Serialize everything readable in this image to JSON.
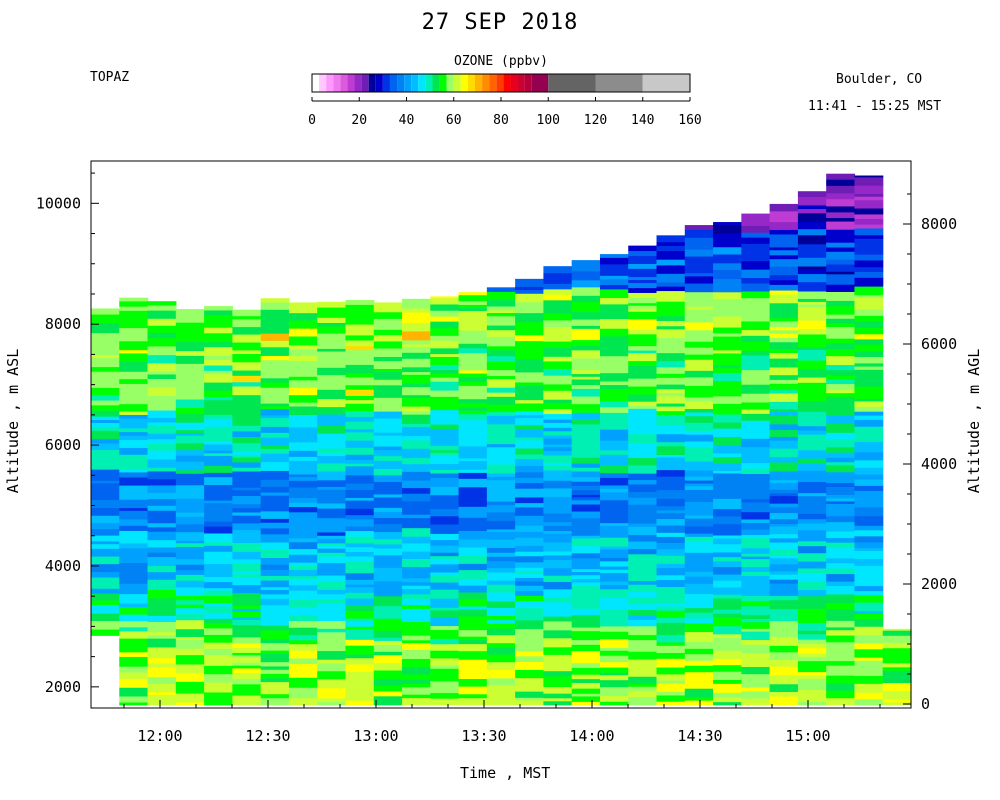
{
  "title": "27 SEP 2018",
  "station": "TOPAZ",
  "location": "Boulder, CO",
  "time_range": "11:41 - 15:25 MST",
  "colorbar": {
    "title": "OZONE (ppbv)",
    "ticks": [
      0,
      20,
      40,
      60,
      80,
      100,
      120,
      140,
      160
    ],
    "bins": [
      {
        "lo": 0,
        "hi": 3,
        "color": "#ffffff"
      },
      {
        "lo": 3,
        "hi": 6,
        "color": "#ffc8ff"
      },
      {
        "lo": 6,
        "hi": 9,
        "color": "#ff99ff"
      },
      {
        "lo": 9,
        "hi": 12,
        "color": "#f07af0"
      },
      {
        "lo": 12,
        "hi": 15,
        "color": "#dc5adc"
      },
      {
        "lo": 15,
        "hi": 18,
        "color": "#be3cd2"
      },
      {
        "lo": 18,
        "hi": 21,
        "color": "#9628c8"
      },
      {
        "lo": 21,
        "hi": 24,
        "color": "#6e1eb4"
      },
      {
        "lo": 24,
        "hi": 27,
        "color": "#000099"
      },
      {
        "lo": 27,
        "hi": 30,
        "color": "#0000cd"
      },
      {
        "lo": 30,
        "hi": 33,
        "color": "#0032e6"
      },
      {
        "lo": 33,
        "hi": 36,
        "color": "#0064f0"
      },
      {
        "lo": 36,
        "hi": 39,
        "color": "#0082f5"
      },
      {
        "lo": 39,
        "hi": 42,
        "color": "#00a0ff"
      },
      {
        "lo": 42,
        "hi": 45,
        "color": "#00beff"
      },
      {
        "lo": 45,
        "hi": 48,
        "color": "#00e6ff"
      },
      {
        "lo": 48,
        "hi": 51,
        "color": "#00f0b4"
      },
      {
        "lo": 51,
        "hi": 54,
        "color": "#00e650"
      },
      {
        "lo": 54,
        "hi": 57,
        "color": "#00ff00"
      },
      {
        "lo": 57,
        "hi": 60,
        "color": "#99ff66"
      },
      {
        "lo": 60,
        "hi": 63,
        "color": "#ccff33"
      },
      {
        "lo": 63,
        "hi": 66,
        "color": "#ffff00"
      },
      {
        "lo": 66,
        "hi": 69,
        "color": "#ffdc00"
      },
      {
        "lo": 69,
        "hi": 72,
        "color": "#ffb400"
      },
      {
        "lo": 72,
        "hi": 75,
        "color": "#ff8c00"
      },
      {
        "lo": 75,
        "hi": 78,
        "color": "#ff6400"
      },
      {
        "lo": 78,
        "hi": 81,
        "color": "#ff3c00"
      },
      {
        "lo": 81,
        "hi": 84,
        "color": "#ff0000"
      },
      {
        "lo": 84,
        "hi": 87,
        "color": "#e6001e"
      },
      {
        "lo": 87,
        "hi": 90,
        "color": "#cd0032"
      },
      {
        "lo": 90,
        "hi": 93,
        "color": "#b4003c"
      },
      {
        "lo": 93,
        "hi": 100,
        "color": "#960050"
      },
      {
        "lo": 100,
        "hi": 120,
        "color": "#646464"
      },
      {
        "lo": 120,
        "hi": 140,
        "color": "#8c8c8c"
      },
      {
        "lo": 140,
        "hi": 160,
        "color": "#c8c8c8"
      }
    ]
  },
  "chart_data": {
    "type": "heatmap",
    "title": "27 SEP 2018",
    "xlabel": "Time , MST",
    "ylabel_left": "Altitude , m ASL",
    "ylabel_right": "Altitude , m AGL",
    "x_range": [
      "11:41",
      "15:25"
    ],
    "x_ticks": [
      "12:00",
      "12:30",
      "13:00",
      "13:30",
      "14:00",
      "14:30",
      "15:00"
    ],
    "y_left_range": [
      1650,
      10700
    ],
    "y_left_ticks": [
      2000,
      4000,
      6000,
      8000,
      10000
    ],
    "y_right_ticks": [
      0,
      2000,
      4000,
      6000,
      8000
    ],
    "z_label": "OZONE (ppbv)",
    "z_range": [
      0,
      160
    ],
    "profile_tops_m_asl": [
      8260,
      8440,
      8380,
      8250,
      8300,
      8240,
      8430,
      8360,
      8370,
      8400,
      8360,
      8420,
      8460,
      8530,
      8610,
      8750,
      8960,
      9060,
      9160,
      9300,
      9470,
      9640,
      9690,
      9830,
      9990,
      10200,
      10490,
      10460,
      2960
    ],
    "profile_bottoms_m_asl": [
      2850,
      1700,
      1700,
      1700,
      1700,
      1700,
      1700,
      1700,
      1700,
      1700,
      1700,
      1700,
      1700,
      1700,
      1700,
      1700,
      1700,
      1700,
      1700,
      1700,
      1700,
      1700,
      1700,
      1700,
      1700,
      1700,
      1700,
      1700,
      1700
    ],
    "ozone_layers_ppbv": [
      {
        "from_m": 1700,
        "to_m": 2700,
        "ozone": 59
      },
      {
        "from_m": 2700,
        "to_m": 3000,
        "ozone": 56
      },
      {
        "from_m": 3000,
        "to_m": 3500,
        "ozone": 50
      },
      {
        "from_m": 3500,
        "to_m": 4500,
        "ozone": 44
      },
      {
        "from_m": 4500,
        "to_m": 5500,
        "ozone": 38
      },
      {
        "from_m": 5500,
        "to_m": 6500,
        "ozone": 47
      },
      {
        "from_m": 6500,
        "to_m": 7700,
        "ozone": 56
      },
      {
        "from_m": 7700,
        "to_m": 8500,
        "ozone": 58
      },
      {
        "from_m": 8500,
        "to_m": 9500,
        "ozone": 41
      },
      {
        "from_m": 9500,
        "to_m": 10500,
        "ozone": 30
      }
    ],
    "grid": false,
    "legend": "colorbar top-center"
  }
}
